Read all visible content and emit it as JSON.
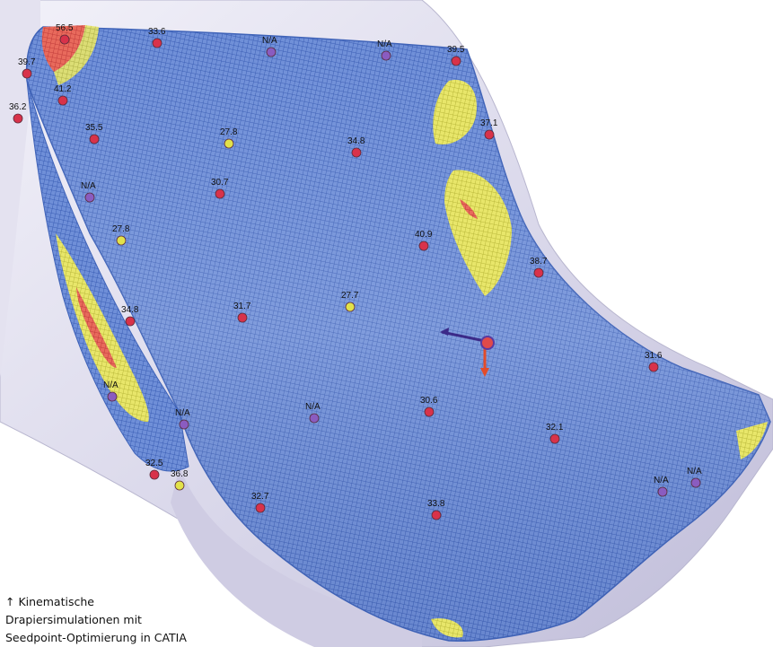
{
  "caption": {
    "arrow": "↑",
    "line1": "Kinematische",
    "line2": "Drapiersimulationen mit",
    "line3": "Seedpoint-Optimierung in CATIA"
  },
  "colors": {
    "mesh_blue": "#5b7fd0",
    "mesh_grid": "#3f63b8",
    "zone_yellow": "#e6e45c",
    "zone_red": "#e04a4a",
    "marker_red": "#d8324a",
    "marker_purple": "#8a5cc0",
    "marker_yellow": "#e2e24a",
    "tool_surface": "#d9d7ea"
  },
  "markers": [
    {
      "label": "56.5",
      "color": "red"
    },
    {
      "label": "33.6",
      "color": "red"
    },
    {
      "label": "N/A",
      "color": "purple"
    },
    {
      "label": "N/A",
      "color": "purple"
    },
    {
      "label": "39.5",
      "color": "red"
    },
    {
      "label": "39.7",
      "color": "red"
    },
    {
      "label": "41.2",
      "color": "red"
    },
    {
      "label": "36.2",
      "color": "red"
    },
    {
      "label": "35.5",
      "color": "red"
    },
    {
      "label": "27.8",
      "color": "yellow"
    },
    {
      "label": "34.8",
      "color": "red"
    },
    {
      "label": "37.1",
      "color": "red"
    },
    {
      "label": "30.7",
      "color": "red"
    },
    {
      "label": "N/A",
      "color": "purple"
    },
    {
      "label": "27.8",
      "color": "yellow"
    },
    {
      "label": "40.9",
      "color": "red"
    },
    {
      "label": "38.7",
      "color": "red"
    },
    {
      "label": "N/A",
      "color": "purple"
    },
    {
      "label": "27.7",
      "color": "yellow"
    },
    {
      "label": "31.7",
      "color": "red"
    },
    {
      "label": "34.8",
      "color": "red"
    },
    {
      "label": "31.6",
      "color": "red"
    },
    {
      "label": "N/A",
      "color": "purple"
    },
    {
      "label": "N/A",
      "color": "purple"
    },
    {
      "label": "30.6",
      "color": "red"
    },
    {
      "label": "32.1",
      "color": "red"
    },
    {
      "label": "32.5",
      "color": "red"
    },
    {
      "label": "36.8",
      "color": "yellow"
    },
    {
      "label": "32.7",
      "color": "red"
    },
    {
      "label": "33.8",
      "color": "red"
    },
    {
      "label": "N/A",
      "color": "purple"
    },
    {
      "label": "N/A",
      "color": "purple"
    }
  ]
}
